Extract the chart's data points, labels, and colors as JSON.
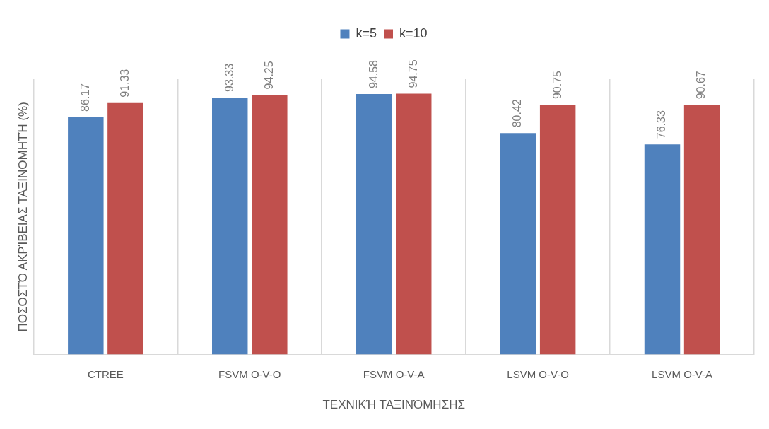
{
  "chart_data": {
    "type": "bar",
    "xlabel": "ΤΕΧΝΙΚΉ ΤΑΞΙΝΌΜΗΣΗΣ",
    "ylabel": "ΠΟΣΟΣΤΌ ΑΚΡΊΒΕΙΑΣ ΤΑΞΙΝΟΜΗΤΉ (%)",
    "categories": [
      "CTREE",
      "FSVM O-V-O",
      "FSVM O-V-A",
      "LSVM O-V-O",
      "LSVM O-V-A"
    ],
    "series": [
      {
        "name": "k=5",
        "color": "#4f81bd",
        "values": [
          86.17,
          93.33,
          94.58,
          80.42,
          76.33
        ]
      },
      {
        "name": "k=10",
        "color": "#c0504d",
        "values": [
          91.33,
          94.25,
          94.75,
          90.75,
          90.67
        ]
      }
    ],
    "data_labels": true,
    "grid": "x",
    "legend": "top"
  }
}
